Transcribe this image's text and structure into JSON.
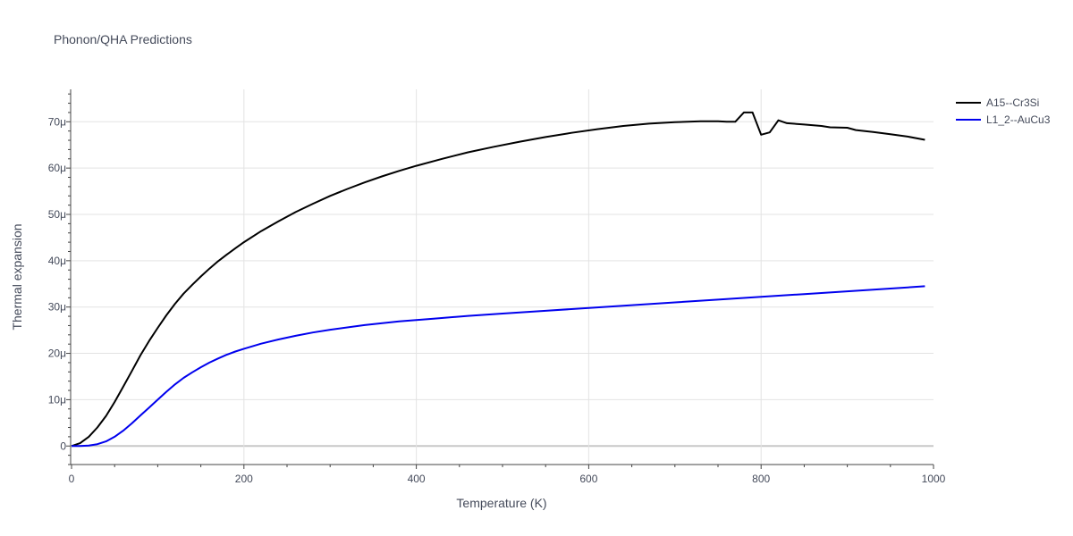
{
  "chart_data": {
    "type": "line",
    "title": "Phonon/QHA Predictions",
    "xlabel": "Temperature (K)",
    "ylabel": "Thermal expansion",
    "xlim": [
      0,
      1000
    ],
    "ylim": [
      -4,
      77
    ],
    "y_unit_suffix": "μ",
    "xticks": [
      0,
      200,
      400,
      600,
      800,
      1000
    ],
    "yticks": [
      0,
      10,
      20,
      30,
      40,
      50,
      60,
      70
    ],
    "ytick_labels": [
      "0",
      "10μ",
      "20μ",
      "30μ",
      "40μ",
      "50μ",
      "60μ",
      "70μ"
    ],
    "grid": true,
    "legend_position": "top-right",
    "series": [
      {
        "name": "A15--Cr3Si",
        "color": "#000000",
        "points": [
          [
            0,
            0
          ],
          [
            10,
            0.6
          ],
          [
            20,
            2
          ],
          [
            30,
            4
          ],
          [
            40,
            6.5
          ],
          [
            50,
            9.5
          ],
          [
            60,
            12.8
          ],
          [
            70,
            16.2
          ],
          [
            80,
            19.6
          ],
          [
            90,
            22.7
          ],
          [
            100,
            25.5
          ],
          [
            110,
            28.2
          ],
          [
            120,
            30.7
          ],
          [
            130,
            32.9
          ],
          [
            140,
            34.8
          ],
          [
            150,
            36.6
          ],
          [
            160,
            38.3
          ],
          [
            170,
            39.9
          ],
          [
            180,
            41.3
          ],
          [
            190,
            42.7
          ],
          [
            200,
            44
          ],
          [
            220,
            46.4
          ],
          [
            240,
            48.5
          ],
          [
            260,
            50.5
          ],
          [
            280,
            52.3
          ],
          [
            300,
            54
          ],
          [
            320,
            55.5
          ],
          [
            340,
            56.9
          ],
          [
            360,
            58.2
          ],
          [
            380,
            59.4
          ],
          [
            400,
            60.5
          ],
          [
            430,
            62
          ],
          [
            460,
            63.4
          ],
          [
            490,
            64.6
          ],
          [
            520,
            65.7
          ],
          [
            550,
            66.7
          ],
          [
            580,
            67.6
          ],
          [
            610,
            68.4
          ],
          [
            640,
            69.1
          ],
          [
            670,
            69.6
          ],
          [
            700,
            69.9
          ],
          [
            730,
            70.1
          ],
          [
            750,
            70.1
          ],
          [
            760,
            70
          ],
          [
            770,
            70
          ],
          [
            780,
            72
          ],
          [
            790,
            72
          ],
          [
            800,
            67.2
          ],
          [
            810,
            67.7
          ],
          [
            820,
            70.3
          ],
          [
            830,
            69.7
          ],
          [
            850,
            69.4
          ],
          [
            870,
            69.1
          ],
          [
            880,
            68.8
          ],
          [
            900,
            68.7
          ],
          [
            910,
            68.2
          ],
          [
            930,
            67.8
          ],
          [
            950,
            67.3
          ],
          [
            970,
            66.8
          ],
          [
            990,
            66.1
          ]
        ]
      },
      {
        "name": "L1_2--AuCu3",
        "color": "#0000ee",
        "points": [
          [
            0,
            0
          ],
          [
            10,
            0
          ],
          [
            20,
            0.1
          ],
          [
            30,
            0.4
          ],
          [
            40,
            1
          ],
          [
            50,
            2
          ],
          [
            60,
            3.3
          ],
          [
            70,
            4.9
          ],
          [
            80,
            6.6
          ],
          [
            90,
            8.3
          ],
          [
            100,
            10
          ],
          [
            110,
            11.7
          ],
          [
            120,
            13.3
          ],
          [
            130,
            14.7
          ],
          [
            140,
            15.9
          ],
          [
            150,
            17
          ],
          [
            160,
            18
          ],
          [
            170,
            18.9
          ],
          [
            180,
            19.7
          ],
          [
            190,
            20.4
          ],
          [
            200,
            21
          ],
          [
            220,
            22.1
          ],
          [
            240,
            23
          ],
          [
            260,
            23.8
          ],
          [
            280,
            24.5
          ],
          [
            300,
            25.1
          ],
          [
            340,
            26.1
          ],
          [
            380,
            26.9
          ],
          [
            420,
            27.5
          ],
          [
            460,
            28.1
          ],
          [
            500,
            28.6
          ],
          [
            550,
            29.2
          ],
          [
            600,
            29.8
          ],
          [
            650,
            30.4
          ],
          [
            700,
            31
          ],
          [
            750,
            31.6
          ],
          [
            800,
            32.2
          ],
          [
            850,
            32.8
          ],
          [
            900,
            33.4
          ],
          [
            950,
            34
          ],
          [
            990,
            34.5
          ]
        ]
      }
    ]
  }
}
